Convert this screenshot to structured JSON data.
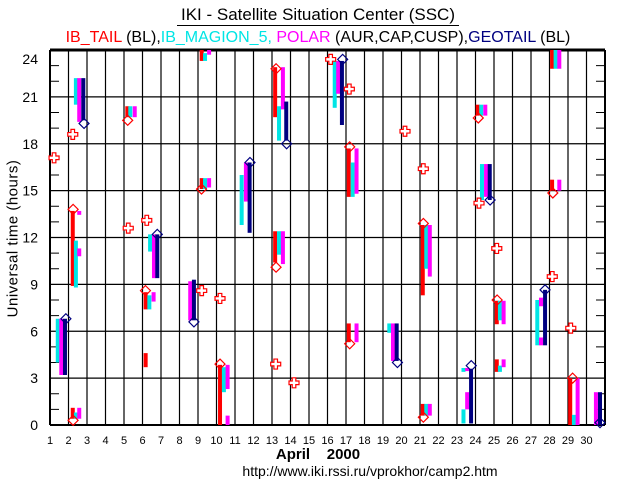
{
  "chart_data": {
    "type": "bar",
    "title": "IKI - Satellite Situation Center (SSC)",
    "subtitle_parts": [
      {
        "text": "IB_TAIL",
        "color": "#ff0000"
      },
      {
        "text": " (BL),",
        "color": "#000000"
      },
      {
        "text": "IB_MAGION_5, ",
        "color": "#00e5e5"
      },
      {
        "text": "POLAR",
        "color": "#ff00ff"
      },
      {
        "text": " (AUR,CAP,CUSP),",
        "color": "#000000"
      },
      {
        "text": "GEOTAIL",
        "color": "#000080"
      },
      {
        "text": " (BL)",
        "color": "#000000"
      }
    ],
    "xlabel": "April    2000",
    "ylabel": "Universal time (hours)",
    "url": "http://www.iki.rssi.ru/vprokhor/camp2.htm",
    "xlim": [
      1,
      31
    ],
    "ylim": [
      0,
      24
    ],
    "x_ticks": [
      "1",
      "2",
      "3",
      "4",
      "5",
      "6",
      "7",
      "8",
      "9",
      "10",
      "11",
      "12",
      "13",
      "14",
      "15",
      "16",
      "17",
      "18",
      "19",
      "20",
      "21",
      "22",
      "23",
      "24",
      "25",
      "26",
      "27",
      "28",
      "29",
      "30"
    ],
    "y_ticks": [
      "0",
      "3",
      "6",
      "9",
      "12",
      "15",
      "18",
      "21",
      "24"
    ],
    "grid": true,
    "series": [
      {
        "name": "IB_TAIL",
        "color": "#ff0000",
        "intervals": [
          [
            2.23,
            8.9,
            13.7
          ],
          [
            2.23,
            0.4,
            1.1
          ],
          [
            5.18,
            19.7,
            20.4
          ],
          [
            6.17,
            7.4,
            8.5
          ],
          [
            6.17,
            3.7,
            4.6
          ],
          [
            9.2,
            23.3,
            24
          ],
          [
            9.2,
            15.1,
            15.8
          ],
          [
            10.19,
            0,
            3.85
          ],
          [
            13.17,
            19.7,
            22.9
          ],
          [
            13.17,
            10.4,
            12.4
          ],
          [
            17.15,
            14.6,
            17.7
          ],
          [
            17.15,
            5.3,
            6.5
          ],
          [
            21.15,
            8.3,
            12.8
          ],
          [
            21.15,
            0.6,
            1.35
          ],
          [
            24.12,
            19.8,
            20.5
          ],
          [
            25.15,
            6.45,
            7.95
          ],
          [
            25.15,
            3.4,
            4.2
          ],
          [
            28.14,
            22.8,
            24
          ],
          [
            28.14,
            15.0,
            15.7
          ],
          [
            29.12,
            0,
            3.0
          ]
        ]
      },
      {
        "name": "IB_MAGION_5",
        "color": "#00e5e5",
        "intervals": [
          [
            1.42,
            4.0,
            6.8
          ],
          [
            2.4,
            20.5,
            22.2
          ],
          [
            2.4,
            8.8,
            11.8
          ],
          [
            2.4,
            0.4,
            0.8
          ],
          [
            5.34,
            19.7,
            20.4
          ],
          [
            6.41,
            11.1,
            12.2
          ],
          [
            6.37,
            7.4,
            8.3
          ],
          [
            9.38,
            23.3,
            23.8
          ],
          [
            9.38,
            15.1,
            15.8
          ],
          [
            10.4,
            2.1,
            3.7
          ],
          [
            11.36,
            12.8,
            16.0
          ],
          [
            13.38,
            18.2,
            20.4
          ],
          [
            13.38,
            10.9,
            12.4
          ],
          [
            16.39,
            20.3,
            23.3
          ],
          [
            17.36,
            14.6,
            16.8
          ],
          [
            19.34,
            5.9,
            6.5
          ],
          [
            21.34,
            10.0,
            12.8
          ],
          [
            21.34,
            0.6,
            1.35
          ],
          [
            23.35,
            3.4,
            3.65
          ],
          [
            23.35,
            0.1,
            1.0
          ],
          [
            24.31,
            19.8,
            20.5
          ],
          [
            24.35,
            14.4,
            16.7
          ],
          [
            25.32,
            6.7,
            7.95
          ],
          [
            25.32,
            3.4,
            3.8
          ],
          [
            28.33,
            22.8,
            24
          ],
          [
            27.34,
            5.1,
            8.0
          ],
          [
            29.32,
            0,
            0.65
          ]
        ]
      },
      {
        "name": "POLAR",
        "color": "#ff00ff",
        "intervals": [
          [
            1.61,
            3.2,
            6.8
          ],
          [
            2.58,
            19.4,
            22.2
          ],
          [
            2.58,
            10.8,
            11.3
          ],
          [
            2.58,
            13.45,
            13.7
          ],
          [
            2.58,
            0.4,
            1.1
          ],
          [
            5.58,
            19.7,
            20.4
          ],
          [
            6.62,
            9.4,
            12.2
          ],
          [
            6.6,
            7.9,
            8.5
          ],
          [
            8.58,
            6.7,
            9.2
          ],
          [
            9.6,
            23.7,
            24
          ],
          [
            9.6,
            15.2,
            15.8
          ],
          [
            10.6,
            2.3,
            3.85
          ],
          [
            10.6,
            0,
            0.6
          ],
          [
            11.59,
            14.3,
            16.8
          ],
          [
            13.59,
            20.2,
            22.9
          ],
          [
            13.59,
            10.3,
            12.4
          ],
          [
            16.58,
            21.2,
            23.3
          ],
          [
            17.57,
            14.8,
            17.7
          ],
          [
            17.57,
            5.3,
            6.5
          ],
          [
            19.54,
            4.1,
            6.5
          ],
          [
            21.53,
            9.5,
            12.8
          ],
          [
            21.53,
            0.6,
            1.35
          ],
          [
            23.55,
            1.0,
            2.1
          ],
          [
            23.55,
            3.45,
            3.65
          ],
          [
            24.53,
            19.8,
            20.5
          ],
          [
            24.57,
            14.6,
            16.7
          ],
          [
            25.52,
            6.45,
            7.95
          ],
          [
            25.52,
            3.7,
            4.2
          ],
          [
            27.54,
            7.6,
            8.15
          ],
          [
            27.54,
            5.1,
            5.6
          ],
          [
            28.53,
            22.8,
            24
          ],
          [
            28.53,
            15.0,
            15.7
          ],
          [
            29.52,
            0,
            3.0
          ],
          [
            30.51,
            0,
            2.1
          ]
        ]
      },
      {
        "name": "GEOTAIL",
        "color": "#000080",
        "intervals": [
          [
            1.81,
            3.2,
            6.8
          ],
          [
            2.8,
            19.5,
            22.2
          ],
          [
            6.8,
            9.4,
            12.2
          ],
          [
            8.78,
            6.7,
            9.3
          ],
          [
            11.79,
            12.3,
            16.8
          ],
          [
            13.77,
            18.2,
            20.7
          ],
          [
            16.78,
            19.2,
            23.3
          ],
          [
            19.74,
            4.1,
            6.5
          ],
          [
            23.76,
            0.1,
            3.6
          ],
          [
            24.77,
            14.4,
            16.7
          ],
          [
            27.76,
            5.1,
            8.65
          ],
          [
            30.73,
            0,
            2.1
          ]
        ]
      }
    ],
    "markers": {
      "red_diamonds": [
        [
          2.25,
          13.8
        ],
        [
          2.25,
          0.3
        ],
        [
          5.2,
          19.5
        ],
        [
          6.16,
          8.6
        ],
        [
          9.19,
          15.1
        ],
        [
          10.19,
          3.9
        ],
        [
          13.22,
          22.8
        ],
        [
          13.22,
          10.1
        ],
        [
          17.2,
          17.8
        ],
        [
          17.2,
          5.2
        ],
        [
          21.18,
          12.9
        ],
        [
          21.18,
          0.5
        ],
        [
          24.15,
          19.65
        ],
        [
          25.17,
          8.0
        ],
        [
          28.18,
          14.85
        ],
        [
          29.25,
          3.0
        ]
      ],
      "navy_diamonds": [
        [
          1.86,
          6.8
        ],
        [
          2.84,
          19.3
        ],
        [
          6.8,
          12.2
        ],
        [
          8.78,
          6.6
        ],
        [
          11.81,
          16.8
        ],
        [
          13.79,
          18.0
        ],
        [
          16.82,
          23.4
        ],
        [
          19.78,
          4.0
        ],
        [
          23.77,
          3.8
        ],
        [
          24.79,
          14.4
        ],
        [
          27.76,
          8.65
        ],
        [
          30.73,
          0.15
        ]
      ],
      "red_crosses": [
        [
          1.22,
          17.1
        ],
        [
          2.23,
          18.6
        ],
        [
          5.23,
          12.6
        ],
        [
          6.23,
          13.1
        ],
        [
          9.2,
          8.6
        ],
        [
          10.19,
          8.1
        ],
        [
          13.2,
          3.9
        ],
        [
          14.19,
          2.7
        ],
        [
          16.17,
          23.4
        ],
        [
          17.18,
          21.5
        ],
        [
          20.19,
          18.8
        ],
        [
          21.18,
          16.4
        ],
        [
          24.19,
          14.2
        ],
        [
          25.15,
          11.3
        ],
        [
          28.15,
          9.5
        ],
        [
          29.15,
          6.2
        ]
      ]
    }
  }
}
